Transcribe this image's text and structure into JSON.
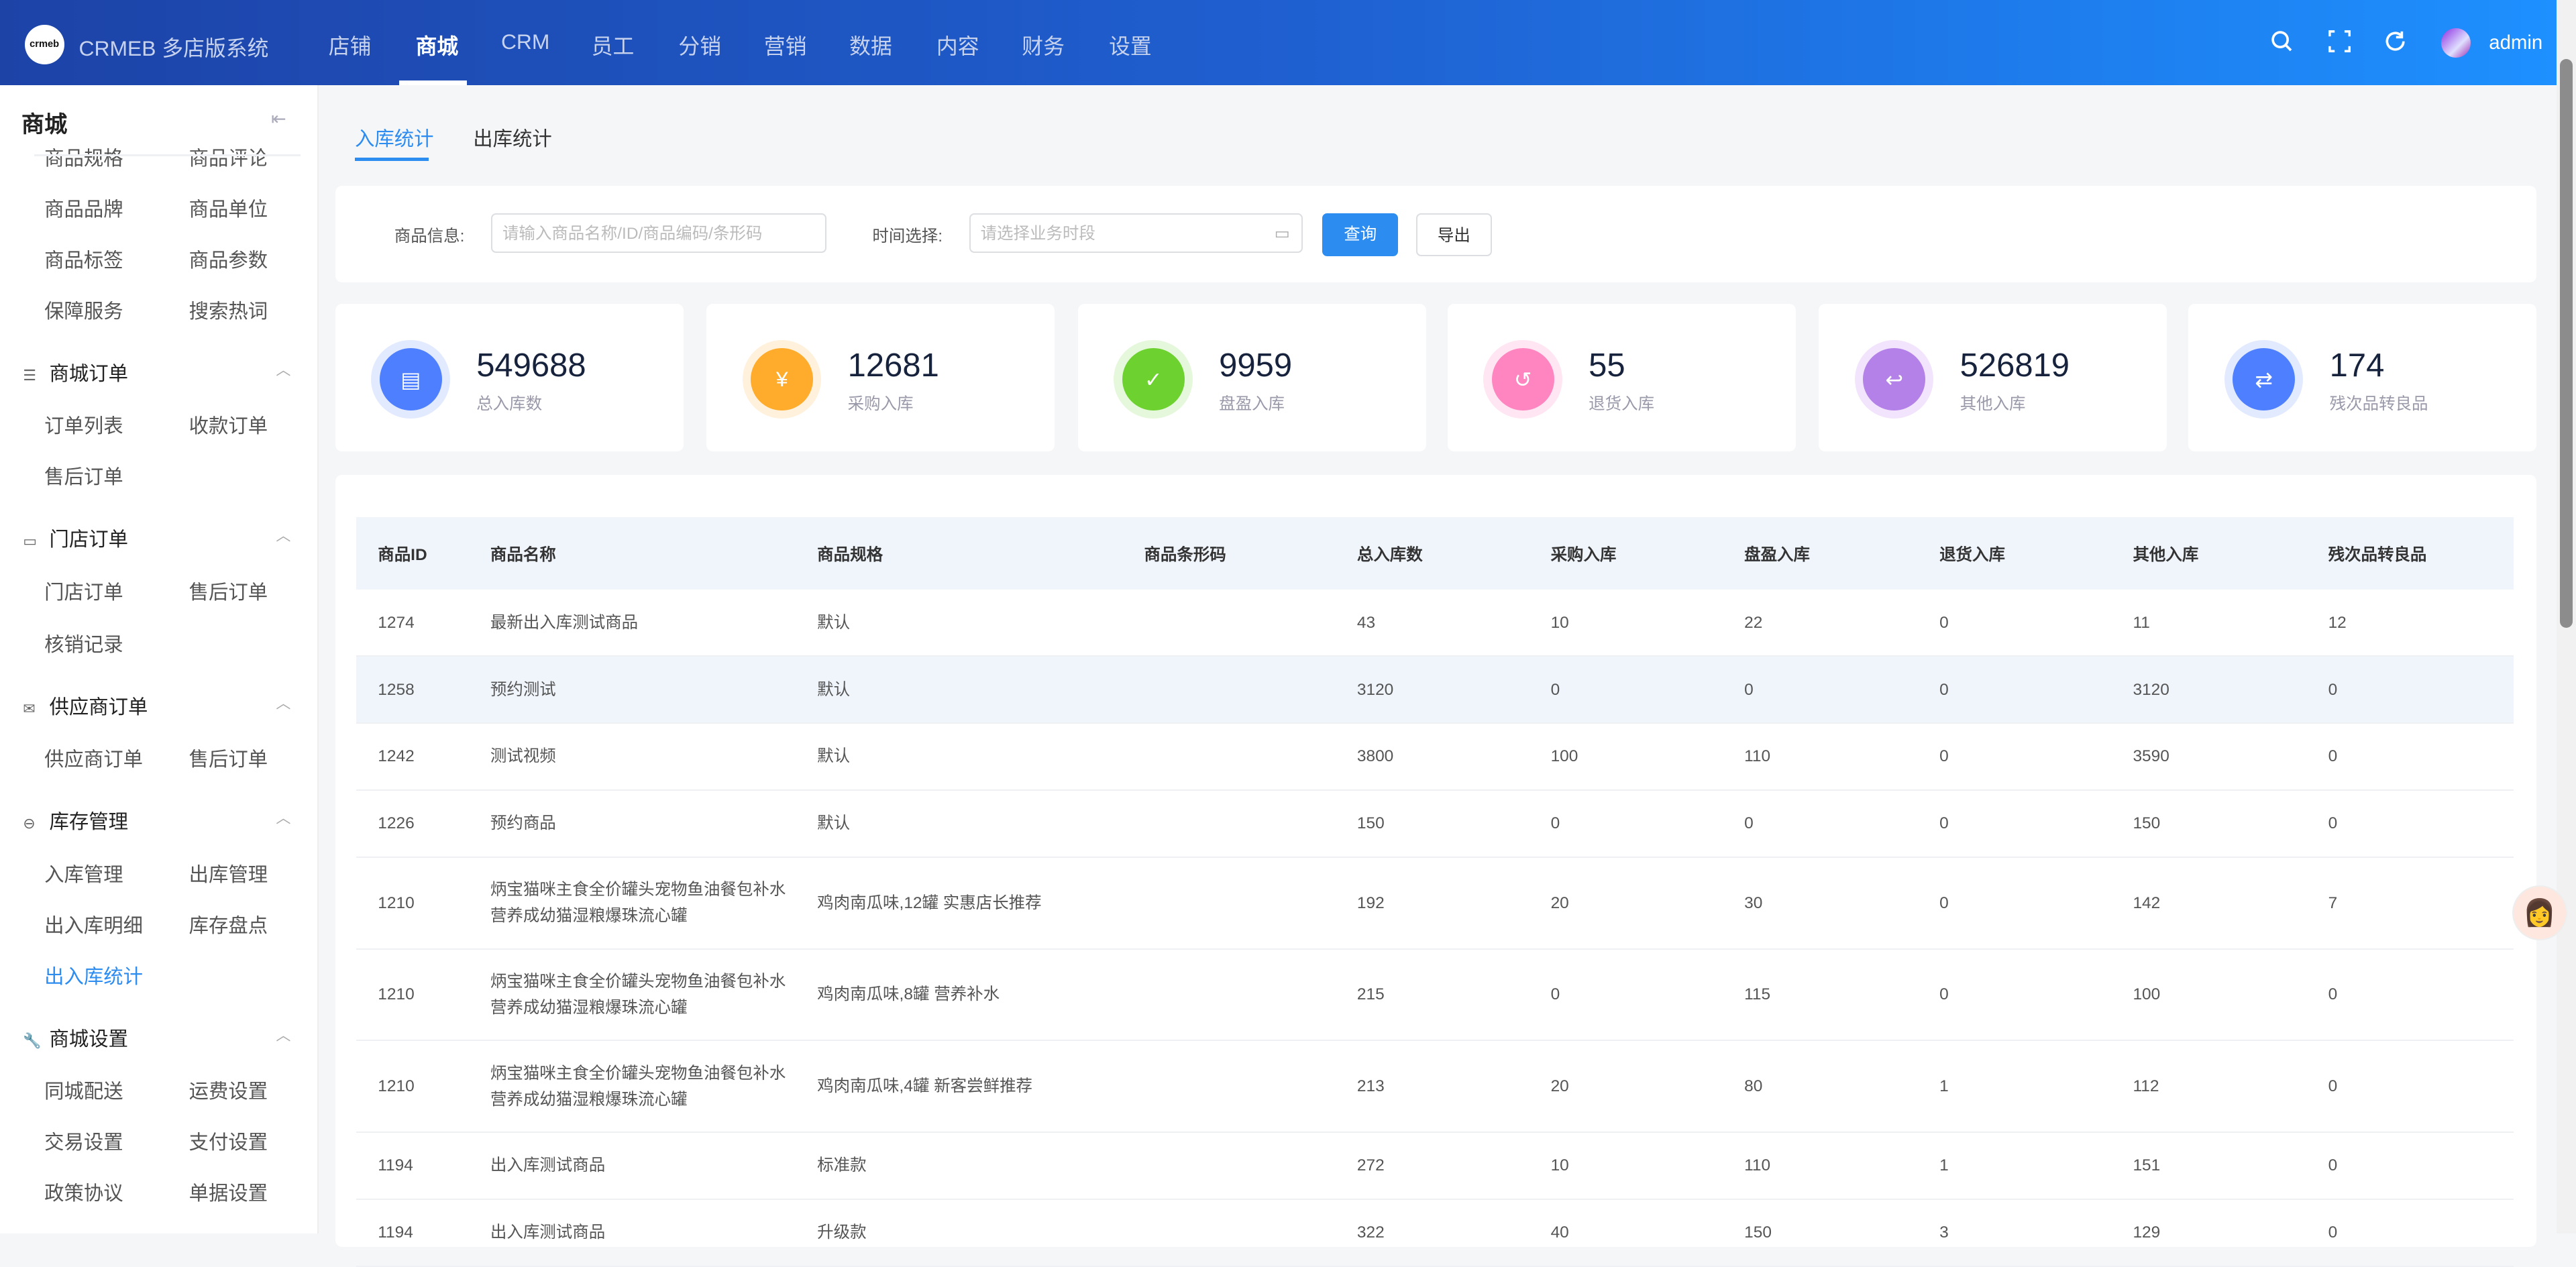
{
  "header": {
    "brand": "CRMEB 多店版系统",
    "logo_text": "crmeb",
    "nav": [
      "店铺",
      "商城",
      "CRM",
      "员工",
      "分销",
      "营销",
      "数据",
      "内容",
      "财务",
      "设置"
    ],
    "active_nav": "商城",
    "user": "admin",
    "colors": {
      "gradient_start": "#1d43a7",
      "gradient_end": "#1e90ff"
    }
  },
  "sidebar": {
    "title": "商城",
    "rows": [
      {
        "type": "items",
        "items": [
          "商品规格",
          "商品评论"
        ]
      },
      {
        "type": "items",
        "items": [
          "商品品牌",
          "商品单位"
        ]
      },
      {
        "type": "items",
        "items": [
          "商品标签",
          "商品参数"
        ]
      },
      {
        "type": "items",
        "items": [
          "保障服务",
          "搜索热词"
        ]
      },
      {
        "type": "group",
        "label": "商城订单",
        "icon": "list-icon"
      },
      {
        "type": "items",
        "items": [
          "订单列表",
          "收款订单"
        ]
      },
      {
        "type": "items",
        "items": [
          "售后订单"
        ]
      },
      {
        "type": "group",
        "label": "门店订单",
        "icon": "store-icon"
      },
      {
        "type": "items",
        "items": [
          "门店订单",
          "售后订单"
        ]
      },
      {
        "type": "items",
        "items": [
          "核销记录"
        ]
      },
      {
        "type": "group",
        "label": "供应商订单",
        "icon": "inbox-icon"
      },
      {
        "type": "items",
        "items": [
          "供应商订单",
          "售后订单"
        ]
      },
      {
        "type": "group",
        "label": "库存管理",
        "icon": "stock-icon"
      },
      {
        "type": "items",
        "items": [
          "入库管理",
          "出库管理"
        ]
      },
      {
        "type": "items",
        "items": [
          "出入库明细",
          "库存盘点"
        ]
      },
      {
        "type": "items",
        "items": [
          "出入库统计"
        ]
      },
      {
        "type": "group",
        "label": "商城设置",
        "icon": "wrench-icon"
      },
      {
        "type": "items",
        "items": [
          "同城配送",
          "运费设置"
        ]
      },
      {
        "type": "items",
        "items": [
          "交易设置",
          "支付设置"
        ]
      },
      {
        "type": "items",
        "items": [
          "政策协议",
          "单据设置"
        ]
      }
    ],
    "active_item": "出入库统计",
    "accent": "#2d8cf0"
  },
  "tabs": [
    "入库统计",
    "出库统计"
  ],
  "active_tab": "入库统计",
  "filters": {
    "product_label": "商品信息:",
    "product_placeholder": "请输入商品名称/ID/商品编码/条形码",
    "time_label": "时间选择:",
    "time_placeholder": "请选择业务时段",
    "query_button": "查询",
    "export_button": "导出"
  },
  "stats": [
    {
      "value": "549688",
      "label": "总入库数",
      "color": "#4e7fff",
      "ring": "#e2eaff",
      "icon": "document-icon"
    },
    {
      "value": "12681",
      "label": "采购入库",
      "color": "#ffab2b",
      "ring": "#fff1db",
      "icon": "yen-icon"
    },
    {
      "value": "9959",
      "label": "盘盈入库",
      "color": "#6dd230",
      "ring": "#e6f8dc",
      "icon": "clipboard-check-icon"
    },
    {
      "value": "55",
      "label": "退货入库",
      "color": "#ff85c0",
      "ring": "#ffe6f2",
      "icon": "return-icon"
    },
    {
      "value": "526819",
      "label": "其他入库",
      "color": "#b381e8",
      "ring": "#f1e4fc",
      "icon": "document-return-icon"
    },
    {
      "value": "174",
      "label": "残次品转良品",
      "color": "#4e7fff",
      "ring": "#e2eaff",
      "icon": "clipboard-swap-icon"
    }
  ],
  "table": {
    "columns": [
      "商品ID",
      "商品名称",
      "商品规格",
      "商品条形码",
      "总入库数",
      "采购入库",
      "盘盈入库",
      "退货入库",
      "其他入库",
      "残次品转良品"
    ],
    "rows": [
      [
        "1274",
        "最新出入库测试商品",
        "默认",
        "",
        "43",
        "10",
        "22",
        "0",
        "11",
        "12"
      ],
      [
        "1258",
        "预约测试",
        "默认",
        "",
        "3120",
        "0",
        "0",
        "0",
        "3120",
        "0"
      ],
      [
        "1242",
        "测试视频",
        "默认",
        "",
        "3800",
        "100",
        "110",
        "0",
        "3590",
        "0"
      ],
      [
        "1226",
        "预约商品",
        "默认",
        "",
        "150",
        "0",
        "0",
        "0",
        "150",
        "0"
      ],
      [
        "1210",
        "炳宝猫咪主食全价罐头宠物鱼油餐包补水营养成幼猫湿粮爆珠流心罐",
        "鸡肉南瓜味,12罐 实惠店长推荐",
        "",
        "192",
        "20",
        "30",
        "0",
        "142",
        "7"
      ],
      [
        "1210",
        "炳宝猫咪主食全价罐头宠物鱼油餐包补水营养成幼猫湿粮爆珠流心罐",
        "鸡肉南瓜味,8罐 营养补水",
        "",
        "215",
        "0",
        "115",
        "0",
        "100",
        "0"
      ],
      [
        "1210",
        "炳宝猫咪主食全价罐头宠物鱼油餐包补水营养成幼猫湿粮爆珠流心罐",
        "鸡肉南瓜味,4罐 新客尝鲜推荐",
        "",
        "213",
        "20",
        "80",
        "1",
        "112",
        "0"
      ],
      [
        "1194",
        "出入库测试商品",
        "标准款",
        "",
        "272",
        "10",
        "110",
        "1",
        "151",
        "0"
      ],
      [
        "1194",
        "出入库测试商品",
        "升级款",
        "",
        "322",
        "40",
        "150",
        "3",
        "129",
        "0"
      ]
    ],
    "highlighted_row": 1
  }
}
